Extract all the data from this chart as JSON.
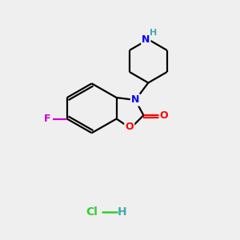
{
  "bg_color": "#efefef",
  "bond_color": "#000000",
  "N_color": "#0000ff",
  "O_color": "#ff0000",
  "F_color": "#cc00cc",
  "Cl_color": "#33cc33",
  "H_color": "#44aaaa",
  "line_width": 1.6,
  "figsize": [
    3.0,
    3.0
  ],
  "dpi": 100,
  "xlim": [
    0,
    10
  ],
  "ylim": [
    0,
    10
  ]
}
